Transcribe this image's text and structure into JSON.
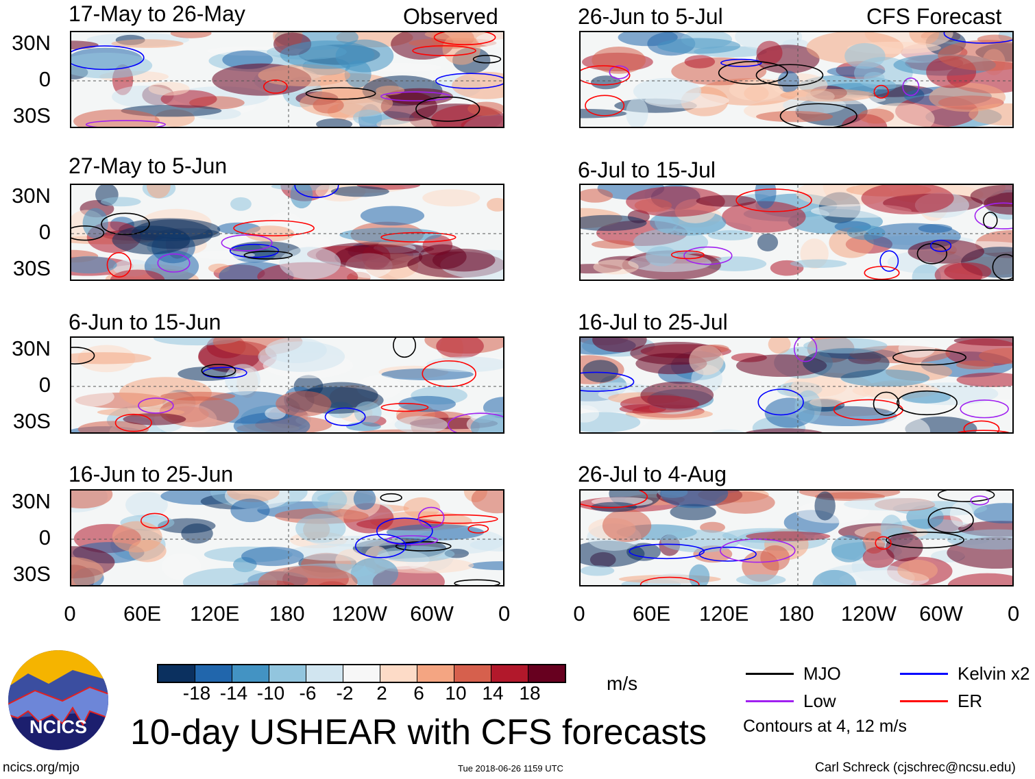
{
  "headers": {
    "observed": "Observed",
    "forecast": "CFS Forecast"
  },
  "observed_panels": [
    "17-May to 26-May",
    "27-May to 5-Jun",
    "6-Jun to 15-Jun",
    "16-Jun to 25-Jun"
  ],
  "forecast_panels": [
    "26-Jun to 5-Jul",
    "6-Jul to 15-Jul",
    "16-Jul to 25-Jul",
    "26-Jul to 4-Aug"
  ],
  "lat_labels": [
    "30N",
    "0",
    "30S"
  ],
  "lon_labels": [
    "0",
    "60E",
    "120E",
    "180",
    "120W",
    "60W",
    "0"
  ],
  "colorbar": {
    "colors": [
      "#0b305f",
      "#2166ac",
      "#4393c3",
      "#92c5de",
      "#d1e5f0",
      "#f7f7f7",
      "#fddbc7",
      "#f4a582",
      "#d6604d",
      "#b2182b",
      "#67001f"
    ],
    "ticks": [
      "-18",
      "-14",
      "-10",
      "-6",
      "-2",
      "2",
      "6",
      "10",
      "14",
      "18"
    ],
    "units": "m/s"
  },
  "legend": {
    "items": [
      {
        "label": "MJO",
        "color": "#000000"
      },
      {
        "label": "Kelvin x2",
        "color": "#0000ff"
      },
      {
        "label": "Low",
        "color": "#a020f0"
      },
      {
        "label": "ER",
        "color": "#ff0000"
      }
    ],
    "note": "Contours at 4, 12 m/s"
  },
  "logo_text": "NCICS",
  "title": "10-day USHEAR with CFS forecasts",
  "footer": {
    "left": "ncics.org/mjo",
    "center": "Tue 2018-06-26 1159 UTC",
    "right": "Carl Schreck (cjschrec@ncsu.edu)"
  }
}
